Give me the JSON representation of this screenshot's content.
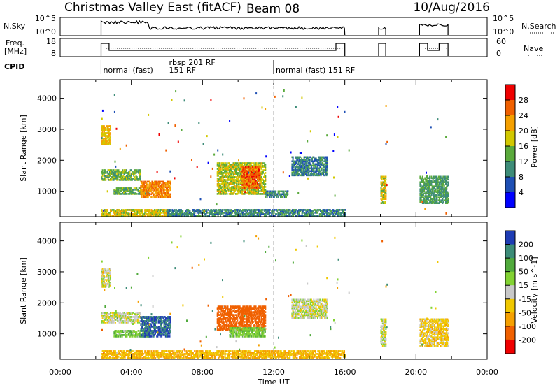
{
  "header": {
    "title_left": "Christmas Valley East (fitACF)",
    "title_center": "Beam 08",
    "title_right": "10/Aug/2016"
  },
  "top_panels": {
    "nsky_label": "N.Sky",
    "nsky_ticks": [
      "10^5",
      "10^0"
    ],
    "nsearch_label": "N.Search",
    "nsearch_ticks": [
      "10^5",
      "10^0"
    ],
    "freq_label_1": "Freq.",
    "freq_label_2": "[MHz]",
    "freq_ticks": [
      "18",
      "8"
    ],
    "nave_label": "Nave",
    "nave_ticks": [
      "60",
      "0"
    ],
    "cpid_label": "CPID",
    "cpid_segments": [
      {
        "start": 2.3,
        "end": 6.0,
        "label": "normal (fast)"
      },
      {
        "start": 6.0,
        "end": 12.0,
        "label": "rbsp 201 RF",
        "label2": "151 RF"
      },
      {
        "start": 12.0,
        "end": 22.0,
        "label": "normal (fast) 151 RF"
      }
    ]
  },
  "chart_data": [
    {
      "type": "heatmap",
      "name": "power",
      "xlabel": "",
      "ylabel": "Slant Range [km]",
      "xlim": [
        0,
        24
      ],
      "ylim": [
        180,
        4600
      ],
      "yticks": [
        1000,
        2000,
        3000,
        4000
      ],
      "colorbar_label": "Power [dB]",
      "colorbar_ticks": [
        "4",
        "8",
        "12",
        "16",
        "20",
        "24",
        "28"
      ],
      "colorbar_colors": [
        "#0000ff",
        "#1e4fb4",
        "#3d8c78",
        "#5aaa3c",
        "#d2c800",
        "#f5a000",
        "#f06000",
        "#f00000"
      ],
      "regions": [
        {
          "x0": 2.3,
          "x1": 2.8,
          "y0": 2500,
          "y1": 3100,
          "value": 20
        },
        {
          "x0": 2.3,
          "x1": 4.5,
          "y0": 1350,
          "y1": 1700,
          "value": 14
        },
        {
          "x0": 3.0,
          "x1": 5.0,
          "y0": 900,
          "y1": 1100,
          "value": 13
        },
        {
          "x0": 4.5,
          "x1": 6.2,
          "y0": 800,
          "y1": 1300,
          "value": 24
        },
        {
          "x0": 2.3,
          "x1": 6.0,
          "y0": 200,
          "y1": 400,
          "value": 18
        },
        {
          "x0": 6.0,
          "x1": 16.0,
          "y0": 200,
          "y1": 400,
          "value": 10
        },
        {
          "x0": 8.8,
          "x1": 11.5,
          "y0": 900,
          "y1": 1900,
          "value": 17
        },
        {
          "x0": 10.2,
          "x1": 11.2,
          "y0": 1100,
          "y1": 1800,
          "value": 26
        },
        {
          "x0": 11.5,
          "x1": 12.8,
          "y0": 800,
          "y1": 1000,
          "value": 10
        },
        {
          "x0": 13.0,
          "x1": 15.0,
          "y0": 1500,
          "y1": 2100,
          "value": 9
        },
        {
          "x0": 18.0,
          "x1": 18.3,
          "y0": 600,
          "y1": 1500,
          "value": 18
        },
        {
          "x0": 20.2,
          "x1": 21.8,
          "y0": 600,
          "y1": 1500,
          "value": 12
        }
      ]
    },
    {
      "type": "heatmap",
      "name": "velocity",
      "xlabel": "Time UT",
      "ylabel": "Slant Range [km]",
      "xlim": [
        0,
        24
      ],
      "ylim": [
        180,
        4600
      ],
      "yticks": [
        1000,
        2000,
        3000,
        4000
      ],
      "xticks": [
        "00:00",
        "04:00",
        "08:00",
        "12:00",
        "16:00",
        "20:00",
        "00:00"
      ],
      "colorbar_label": "Velocity [m s^-1]",
      "colorbar_ticks": [
        "200",
        "100",
        "50",
        "15",
        "-15",
        "-50",
        "-100",
        "-200"
      ],
      "colorbar_colors": [
        "#1e3cb4",
        "#3c8c78",
        "#50aa3c",
        "#82d232",
        "#c8c8c8",
        "#f0c800",
        "#f5a000",
        "#f06000",
        "#f00000"
      ],
      "regions": [
        {
          "x0": 2.3,
          "x1": 2.8,
          "y0": 2500,
          "y1": 3100,
          "value": 0
        },
        {
          "x0": 2.3,
          "x1": 4.5,
          "y0": 1350,
          "y1": 1700,
          "value": 0
        },
        {
          "x0": 3.0,
          "x1": 5.0,
          "y0": 900,
          "y1": 1100,
          "value": 40
        },
        {
          "x0": 4.5,
          "x1": 6.2,
          "y0": 900,
          "y1": 1550,
          "value": 200
        },
        {
          "x0": 2.3,
          "x1": 16.0,
          "y0": 200,
          "y1": 450,
          "value": -50
        },
        {
          "x0": 8.8,
          "x1": 11.5,
          "y0": 1100,
          "y1": 1900,
          "value": -150
        },
        {
          "x0": 9.5,
          "x1": 11.5,
          "y0": 900,
          "y1": 1200,
          "value": 40
        },
        {
          "x0": 13.0,
          "x1": 15.0,
          "y0": 1500,
          "y1": 2100,
          "value": 0
        },
        {
          "x0": 18.0,
          "x1": 18.3,
          "y0": 600,
          "y1": 1500,
          "value": 0
        },
        {
          "x0": 20.2,
          "x1": 21.8,
          "y0": 600,
          "y1": 1500,
          "value": -30
        }
      ]
    }
  ]
}
